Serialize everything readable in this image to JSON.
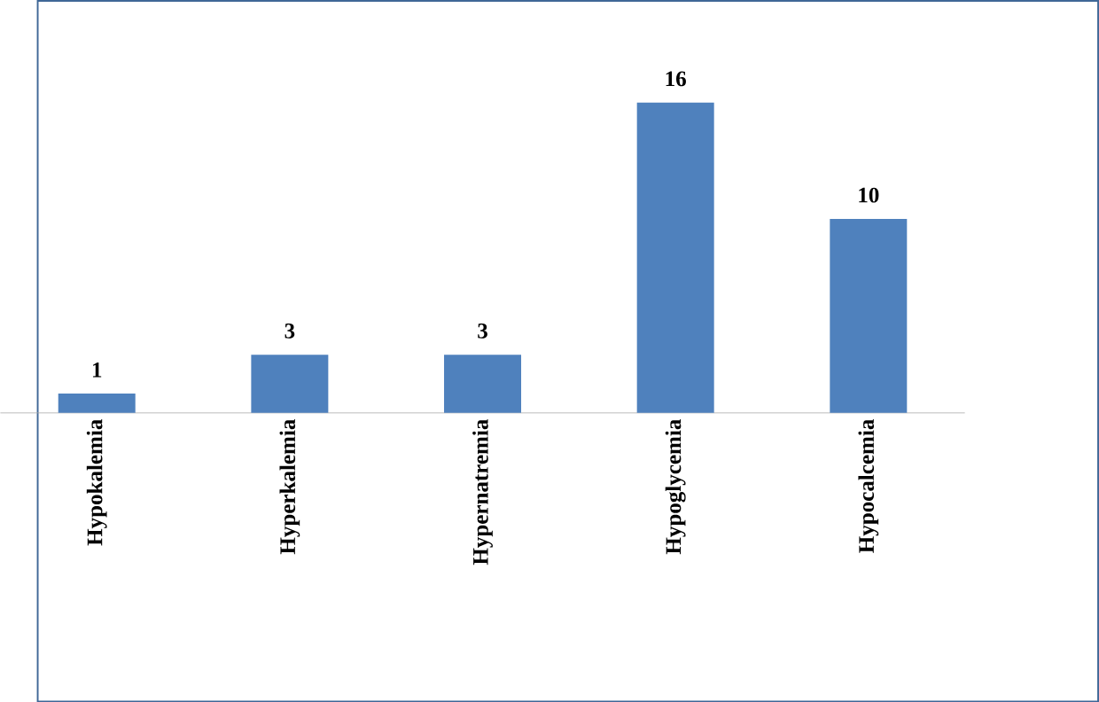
{
  "chart_data": {
    "type": "bar",
    "categories": [
      "Hypokalemia",
      "Hyperkalemia",
      "Hypernatremia",
      "Hypoglycemia",
      "Hypocalcemia"
    ],
    "values": [
      1,
      3,
      3,
      16,
      10
    ],
    "color": "#4f81bd",
    "data_labels": true
  }
}
